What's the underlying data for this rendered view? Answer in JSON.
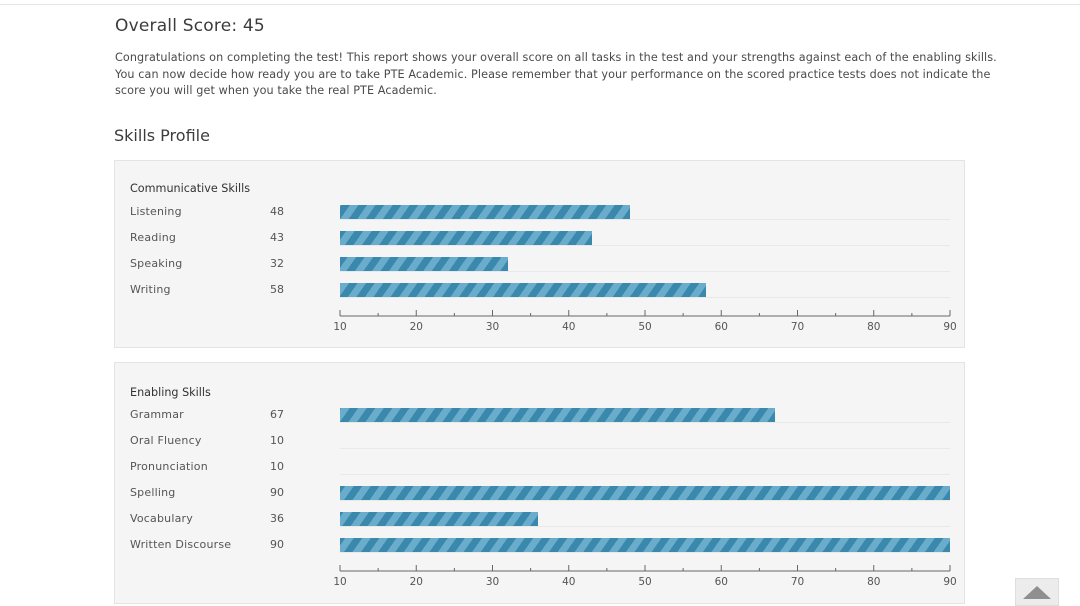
{
  "page": {
    "title": "Overall Score: 45",
    "intro_lines": [
      "Congratulations on completing the test! This report shows your overall score on all tasks in the test and your strengths against each of the enabling skills.",
      "You can now decide how ready you are to take PTE Academic. Please remember that your performance on the scored practice tests does not indicate the",
      "score you will get when you take the real PTE Academic."
    ],
    "section_title": "Skills Profile"
  },
  "communicative": {
    "heading": "Communicative Skills",
    "skills": [
      {
        "label": "Listening",
        "score": "48"
      },
      {
        "label": "Reading",
        "score": "43"
      },
      {
        "label": "Speaking",
        "score": "32"
      },
      {
        "label": "Writing",
        "score": "58"
      }
    ]
  },
  "enabling": {
    "heading": "Enabling Skills",
    "skills": [
      {
        "label": "Grammar",
        "score": "67"
      },
      {
        "label": "Oral Fluency",
        "score": "10"
      },
      {
        "label": "Pronunciation",
        "score": "10"
      },
      {
        "label": "Spelling",
        "score": "90"
      },
      {
        "label": "Vocabulary",
        "score": "36"
      },
      {
        "label": "Written Discourse",
        "score": "90"
      }
    ]
  },
  "chart_data": [
    {
      "type": "bar",
      "orientation": "horizontal",
      "title": "Communicative Skills",
      "categories": [
        "Listening",
        "Reading",
        "Speaking",
        "Writing"
      ],
      "values": [
        48,
        43,
        32,
        58
      ],
      "xlim": [
        10,
        90
      ],
      "ticks": [
        "10",
        "20",
        "30",
        "40",
        "50",
        "60",
        "70",
        "80",
        "90"
      ]
    },
    {
      "type": "bar",
      "orientation": "horizontal",
      "title": "Enabling Skills",
      "categories": [
        "Grammar",
        "Oral Fluency",
        "Pronunciation",
        "Spelling",
        "Vocabulary",
        "Written Discourse"
      ],
      "values": [
        67,
        10,
        10,
        90,
        36,
        90
      ],
      "xlim": [
        10,
        90
      ],
      "ticks": [
        "10",
        "20",
        "30",
        "40",
        "50",
        "60",
        "70",
        "80",
        "90"
      ]
    }
  ],
  "colors": {
    "bar_dark": "#3a89ad",
    "bar_light": "#6aaccb",
    "panel_bg": "#f5f5f5"
  },
  "scroll_top": {
    "icon": "triangle-up-icon"
  }
}
